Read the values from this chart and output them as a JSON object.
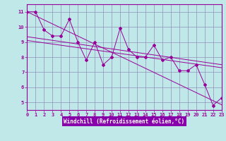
{
  "bg_color": "#c0e8e8",
  "line_color": "#990099",
  "grid_color": "#9090bb",
  "axis_bg": "#8800aa",
  "xlabel": "Windchill (Refroidissement éolien,°C)",
  "xlim": [
    0,
    23
  ],
  "ylim": [
    4.5,
    11.5
  ],
  "xticks": [
    0,
    1,
    2,
    3,
    4,
    5,
    6,
    7,
    8,
    9,
    10,
    11,
    12,
    13,
    14,
    15,
    16,
    17,
    18,
    19,
    20,
    21,
    22,
    23
  ],
  "yticks": [
    5,
    6,
    7,
    8,
    9,
    10,
    11
  ],
  "zigzag_x": [
    0,
    1,
    2,
    3,
    4,
    5,
    6,
    7,
    8,
    9,
    10,
    11,
    12,
    13,
    14,
    15,
    16,
    17,
    18,
    19,
    20,
    21,
    22,
    23
  ],
  "zigzag_y": [
    11.0,
    11.0,
    9.8,
    9.4,
    9.4,
    10.5,
    9.0,
    7.8,
    9.0,
    7.5,
    8.0,
    9.9,
    8.5,
    8.0,
    8.0,
    8.8,
    7.8,
    8.0,
    7.1,
    7.1,
    7.5,
    6.2,
    4.8,
    5.3
  ],
  "trend1": {
    "x": [
      0,
      23
    ],
    "y": [
      11.0,
      4.85
    ]
  },
  "trend2": {
    "x": [
      0,
      23
    ],
    "y": [
      9.35,
      7.5
    ]
  },
  "trend3": {
    "x": [
      0,
      23
    ],
    "y": [
      9.1,
      7.3
    ]
  }
}
